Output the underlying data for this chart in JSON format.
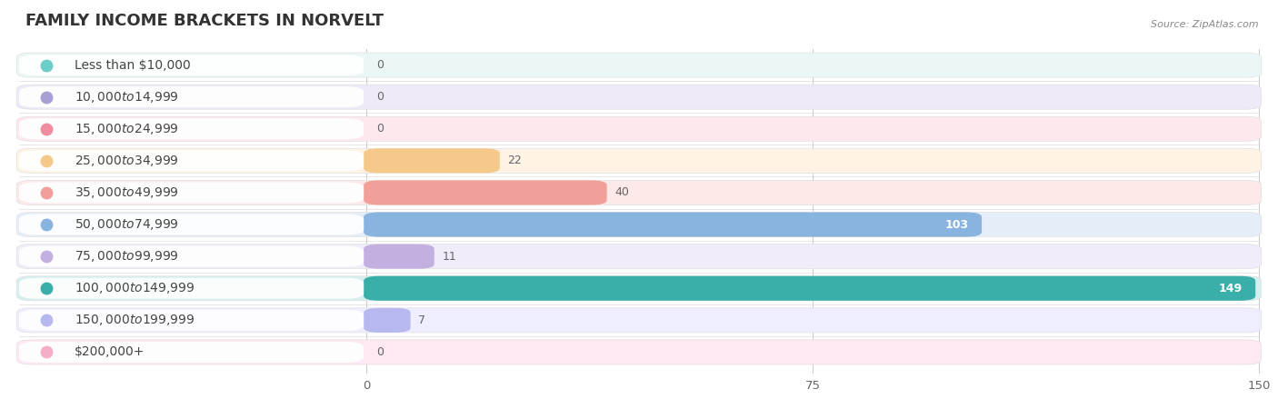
{
  "title": "FAMILY INCOME BRACKETS IN NORVELT",
  "source": "Source: ZipAtlas.com",
  "categories": [
    "Less than $10,000",
    "$10,000 to $14,999",
    "$15,000 to $24,999",
    "$25,000 to $34,999",
    "$35,000 to $49,999",
    "$50,000 to $74,999",
    "$75,000 to $99,999",
    "$100,000 to $149,999",
    "$150,000 to $199,999",
    "$200,000+"
  ],
  "values": [
    0,
    0,
    0,
    22,
    40,
    103,
    11,
    149,
    7,
    0
  ],
  "bar_colors": [
    "#6dcdc8",
    "#a89fd4",
    "#f08ca0",
    "#f5c98a",
    "#f0a099",
    "#8ab4e0",
    "#c4b0e0",
    "#3aafa9",
    "#b8b8f0",
    "#f4aec8"
  ],
  "bar_bg_colors": [
    "#eaf7f6",
    "#eeeaf8",
    "#fde8ed",
    "#fef3e5",
    "#fde9e7",
    "#e5eef8",
    "#f0ecfa",
    "#d5efee",
    "#eeeeff",
    "#fde8f3"
  ],
  "row_bg_color": "#f0f0f0",
  "xlim_max": 150,
  "xticks": [
    0,
    75,
    150
  ],
  "background_color": "#ffffff",
  "title_fontsize": 13,
  "label_fontsize": 10,
  "value_fontsize": 9,
  "value_color_inside": "#ffffff",
  "value_color_outside": "#666666",
  "inside_threshold": 68
}
